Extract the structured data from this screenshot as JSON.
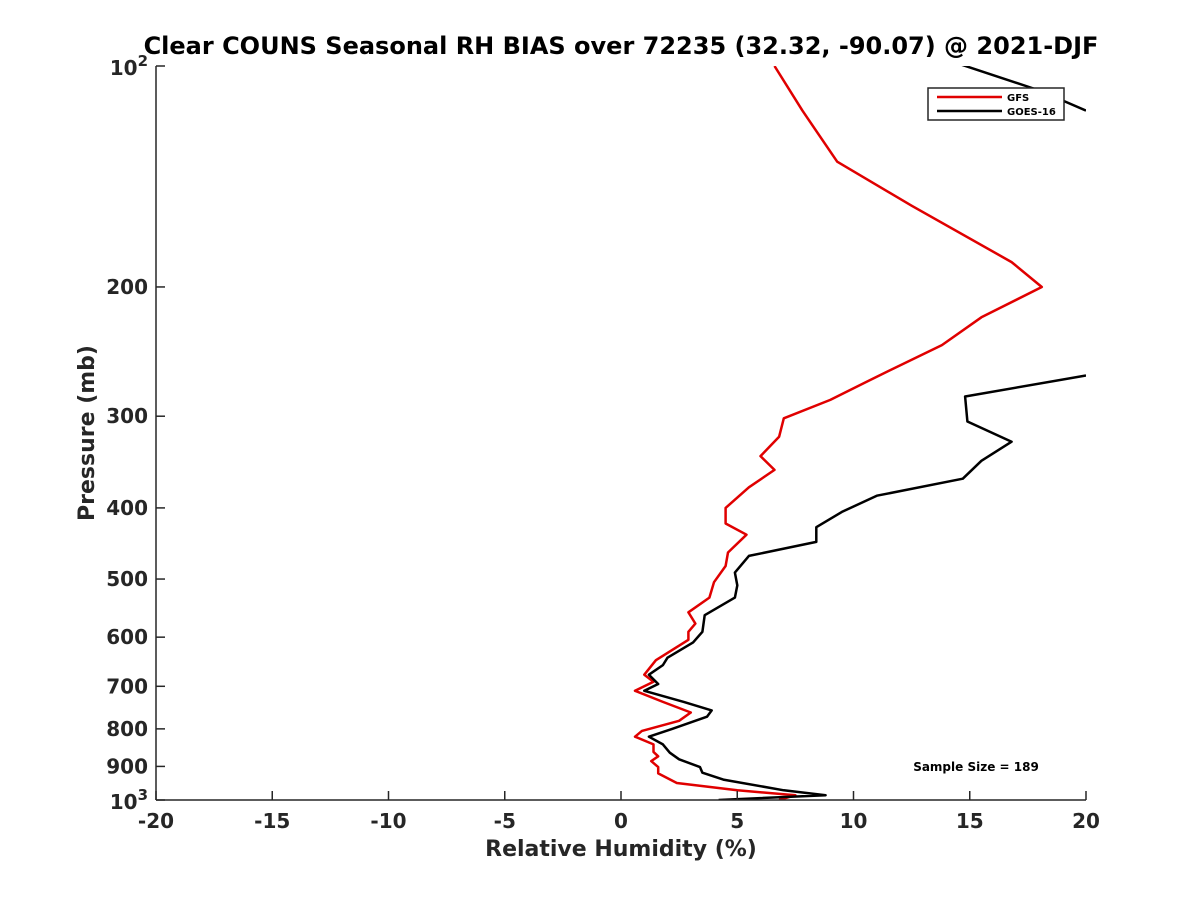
{
  "chart_data": {
    "type": "line",
    "title": "Clear COUNS Seasonal RH BIAS over 72235 (32.32, -90.07) @ 2021-DJF",
    "xlabel": "Relative Humidity (%)",
    "ylabel": "Pressure (mb)",
    "xlim": [
      -20,
      20
    ],
    "ylim": [
      100,
      1000
    ],
    "yscale": "log",
    "y_reversed": true,
    "grid": false,
    "legend_position": "top-right",
    "x_ticks": [
      "-20",
      "-15",
      "-10",
      "-5",
      "0",
      "5",
      "10",
      "15",
      "20"
    ],
    "y_ticks": [
      {
        "value": 100,
        "base": "10",
        "exp": "2"
      },
      {
        "value": 200,
        "label": "200"
      },
      {
        "value": 300,
        "label": "300"
      },
      {
        "value": 400,
        "label": "400"
      },
      {
        "value": 500,
        "label": "500"
      },
      {
        "value": 600,
        "label": "600"
      },
      {
        "value": 700,
        "label": "700"
      },
      {
        "value": 800,
        "label": "800"
      },
      {
        "value": 900,
        "label": "900"
      },
      {
        "value": 1000,
        "base": "10",
        "exp": "3"
      }
    ],
    "series": [
      {
        "name": "GFS",
        "color": "#e00000",
        "points": [
          [
            6.6,
            100
          ],
          [
            7.8,
            115
          ],
          [
            9.3,
            135
          ],
          [
            12.5,
            155
          ],
          [
            16.8,
            185
          ],
          [
            18.1,
            200
          ],
          [
            15.5,
            220
          ],
          [
            13.8,
            240
          ],
          [
            11.0,
            265
          ],
          [
            9.0,
            285
          ],
          [
            7.0,
            302
          ],
          [
            6.8,
            320
          ],
          [
            6.0,
            340
          ],
          [
            6.6,
            355
          ],
          [
            5.5,
            375
          ],
          [
            4.5,
            400
          ],
          [
            4.5,
            420
          ],
          [
            5.4,
            435
          ],
          [
            4.6,
            460
          ],
          [
            4.5,
            480
          ],
          [
            4.0,
            505
          ],
          [
            3.8,
            530
          ],
          [
            2.9,
            555
          ],
          [
            3.2,
            575
          ],
          [
            2.9,
            590
          ],
          [
            2.9,
            605
          ],
          [
            1.5,
            645
          ],
          [
            1.0,
            675
          ],
          [
            1.4,
            690
          ],
          [
            0.6,
            710
          ],
          [
            1.8,
            735
          ],
          [
            3.0,
            760
          ],
          [
            2.5,
            780
          ],
          [
            0.9,
            805
          ],
          [
            0.6,
            820
          ],
          [
            1.4,
            840
          ],
          [
            1.4,
            860
          ],
          [
            1.6,
            872
          ],
          [
            1.3,
            885
          ],
          [
            1.6,
            902
          ],
          [
            1.6,
            920
          ],
          [
            2.4,
            948
          ],
          [
            5.0,
            970
          ],
          [
            7.5,
            985
          ],
          [
            6.8,
            1000
          ]
        ]
      },
      {
        "name": "GOES-16",
        "color": "#000000",
        "points": [
          [
            20.0,
            115
          ],
          [
            18.0,
            108
          ],
          [
            14.4,
            99
          ],
          null,
          [
            20.0,
            264
          ],
          [
            14.8,
            282
          ],
          [
            14.9,
            305
          ],
          [
            16.8,
            325
          ],
          [
            15.5,
            345
          ],
          [
            14.7,
            365
          ],
          [
            11.0,
            385
          ],
          [
            9.5,
            405
          ],
          [
            8.4,
            425
          ],
          [
            8.4,
            445
          ],
          [
            5.5,
            465
          ],
          [
            4.9,
            490
          ],
          [
            5.0,
            510
          ],
          [
            4.9,
            530
          ],
          [
            3.6,
            560
          ],
          [
            3.5,
            590
          ],
          [
            3.1,
            610
          ],
          [
            2.0,
            640
          ],
          [
            1.8,
            655
          ],
          [
            1.2,
            675
          ],
          [
            1.6,
            695
          ],
          [
            1.0,
            710
          ],
          [
            2.7,
            735
          ],
          [
            3.9,
            755
          ],
          [
            3.7,
            770
          ],
          [
            2.2,
            800
          ],
          [
            1.2,
            820
          ],
          [
            1.8,
            840
          ],
          [
            2.1,
            862
          ],
          [
            2.5,
            880
          ],
          [
            3.4,
            902
          ],
          [
            3.5,
            918
          ],
          [
            4.4,
            938
          ],
          [
            7.0,
            970
          ],
          [
            8.8,
            985
          ],
          [
            4.2,
            1000
          ]
        ]
      }
    ],
    "annotation": "Sample Size = 189"
  }
}
